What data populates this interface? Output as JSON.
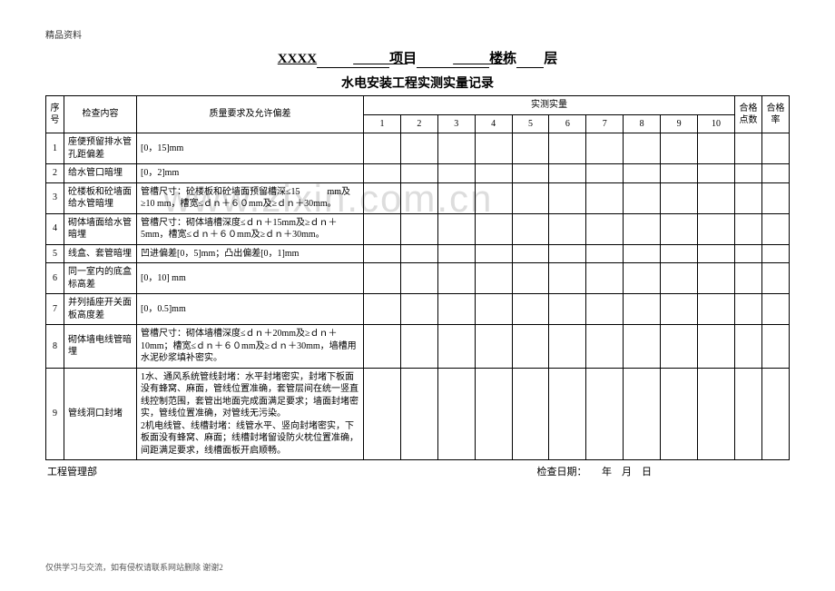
{
  "header_label": "精品资料",
  "title_prefix": "XXXX",
  "title_mid1": "项目",
  "title_mid2": "楼栋",
  "title_mid3": "层",
  "subtitle": "水电安装工程实测实量记录",
  "watermark": "www.zixin.com.cn",
  "cols": {
    "seq": "序号",
    "item": "检查内容",
    "req": "质量要求及允许偏差",
    "meas_group": "实测实量",
    "pts": "合格点数",
    "rate": "合格率",
    "nums": [
      "1",
      "2",
      "3",
      "4",
      "5",
      "6",
      "7",
      "8",
      "9",
      "10"
    ]
  },
  "rows": [
    {
      "n": "1",
      "item": "座便预留排水管孔距偏差",
      "req": "[0，15]mm"
    },
    {
      "n": "2",
      "item": "给水管口暗埋",
      "req": "[0，2]mm"
    },
    {
      "n": "3",
      "item": "砼楼板和砼墙面给水管暗埋",
      "req": "管槽尺寸：砼楼板和砼墙面预留槽深≤15　　　mm及≥10 mm，槽宽≤ｄｎ＋６０mm及≥ｄｎ＋30mm。"
    },
    {
      "n": "4",
      "item": "砌体墙面给水管暗埋",
      "req": "管槽尺寸：砌体墙槽深度≤ｄｎ＋15mm及≥ｄｎ＋5mm，槽宽≤ｄｎ＋６０mm及≥ｄｎ＋30mm。"
    },
    {
      "n": "5",
      "item": "线盒、套管暗埋",
      "req": "凹进偏差[0，5]mm；凸出偏差[0，1]mm"
    },
    {
      "n": "6",
      "item": "同一室内的底盒标高差",
      "req": "[0，10] mm"
    },
    {
      "n": "7",
      "item": "并列插座开关面板高度差",
      "req": "[0，0.5]mm"
    },
    {
      "n": "8",
      "item": "砌体墙电线管暗埋",
      "req": "管槽尺寸：砌体墙槽深度≤ｄｎ＋20mm及≥ｄｎ＋10mm；槽宽≤ｄｎ＋６０mm及≥ｄｎ＋30mm，墙槽用水泥砂浆填补密实。"
    },
    {
      "n": "9",
      "item": "管线洞口封堵",
      "req": "1水、通风系统管线封堵：水平封堵密实，封堵下板面没有蜂窝、麻面，管线位置准确，套管层间在统一竖直线控制范围，套管出地面完成面满足要求；墙面封堵密实，管线位置准确，对管线无污染。\n2机电线管、线槽封堵：线管水平、竖向封堵密实，下板面没有蜂窝、麻面；线槽封堵留设防火枕位置准确，间距满足要求，线槽面板开启顺畅。"
    }
  ],
  "footer_left": "工程管理部",
  "footer_right": "检查日期：　　年　月　日",
  "bottom_note": "仅供学习与交流，如有侵权请联系网站删除 谢谢",
  "bottom_page": "2"
}
